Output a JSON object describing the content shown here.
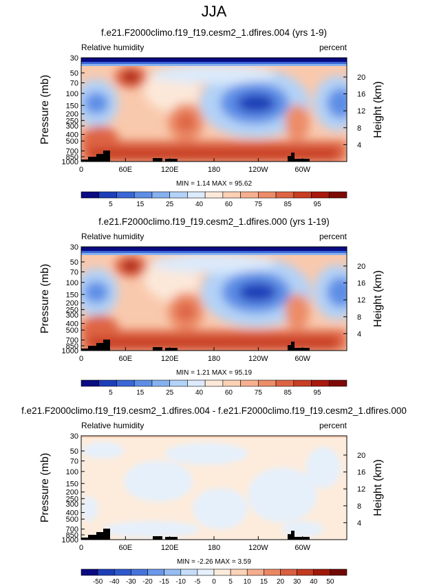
{
  "figure": {
    "season_title": "JJA"
  },
  "panels": [
    {
      "title": "f.e21.F2000climo.f19_f19.cesm2_1.dfires.004 (yrs 1-9)",
      "left_label": "Relative humidity",
      "right_label": "percent",
      "stats": "MIN =   1.14  MAX =  95.62",
      "kind": "field"
    },
    {
      "title": "f.e21.F2000climo.f19_f19.cesm2_1.dfires.000 (yrs 1-19)",
      "left_label": "Relative humidity",
      "right_label": "percent",
      "stats": "MIN =   1.21  MAX =  95.19",
      "kind": "field"
    },
    {
      "title": "f.e21.F2000climo.f19_f19.cesm2_1.dfires.004 - f.e21.F2000climo.f19_f19.cesm2_1.dfires.000",
      "left_label": "Relative humidity",
      "right_label": "percent",
      "stats": "MIN =  -2.26  MAX =   3.59",
      "kind": "difference"
    }
  ],
  "axes": {
    "ylabel": "Pressure (mb)",
    "y2label": "Height (km)",
    "pressure_ticks": [
      "1000",
      "850",
      "700",
      "500",
      "400",
      "300",
      "250",
      "200",
      "150",
      "100",
      "70",
      "50",
      "30"
    ],
    "height_ticks": [
      "4",
      "8",
      "12",
      "16",
      "20"
    ],
    "lon_ticks": [
      "0",
      "60E",
      "120E",
      "180",
      "120W",
      "60W"
    ]
  },
  "colorbars": {
    "field": {
      "labels": [
        "5",
        "15",
        "25",
        "40",
        "60",
        "75",
        "85",
        "95"
      ],
      "colors": [
        "#0a0a82",
        "#1c3fb8",
        "#3a66d6",
        "#5d8ee6",
        "#86b1f0",
        "#b3d2f7",
        "#dceafb",
        "#fce8d9",
        "#fbd0b5",
        "#f6b08f",
        "#ec8c68",
        "#de6544",
        "#c83e22",
        "#a8180c",
        "#7d0a05"
      ]
    },
    "difference": {
      "labels": [
        "-50",
        "-40",
        "-30",
        "-20",
        "-15",
        "-10",
        "-5",
        "0",
        "5",
        "10",
        "15",
        "20",
        "30",
        "40",
        "50"
      ],
      "colors": [
        "#0a0a82",
        "#1c3fb8",
        "#2f58cc",
        "#4674dc",
        "#6b98e8",
        "#95bdf2",
        "#c5ddf8",
        "#e6f0fb",
        "#fdecdc",
        "#fbd3b7",
        "#f4ad8d",
        "#ea8763",
        "#da5f3f",
        "#c23a1f",
        "#a01808",
        "#720704"
      ]
    }
  }
}
